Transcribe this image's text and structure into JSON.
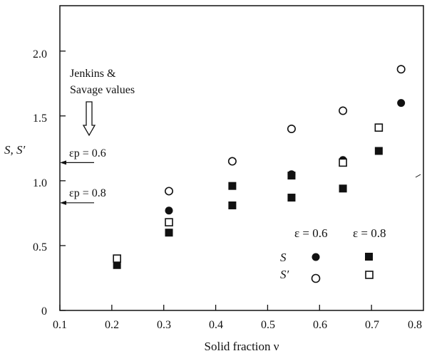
{
  "chart_data": {
    "type": "scatter",
    "xlabel": "Solid fraction ν",
    "ylabel": "S, S′",
    "xlim": [
      0.1,
      0.8
    ],
    "ylim": [
      0,
      2.35
    ],
    "x_ticks": [
      "0.1",
      "0.2",
      "0.3",
      "0.4",
      "0.5",
      "0.6",
      "0.7",
      "0.8"
    ],
    "y_ticks": [
      "0",
      "0.5",
      "1.0",
      "1.5",
      "2.0"
    ],
    "grid": false,
    "series": [
      {
        "id": "S_e06",
        "marker": "filled-circle",
        "points": [
          [
            0.31,
            0.77
          ],
          [
            0.546,
            1.05
          ],
          [
            0.645,
            1.16
          ],
          [
            0.757,
            1.6
          ]
        ]
      },
      {
        "id": "Sp_e06",
        "marker": "open-circle",
        "points": [
          [
            0.31,
            0.92
          ],
          [
            0.432,
            1.15
          ],
          [
            0.546,
            1.4
          ],
          [
            0.645,
            1.54
          ],
          [
            0.757,
            1.86
          ]
        ]
      },
      {
        "id": "S_e08",
        "marker": "filled-square",
        "points": [
          [
            0.21,
            0.35
          ],
          [
            0.31,
            0.6
          ],
          [
            0.432,
            0.96
          ],
          [
            0.432,
            0.81
          ],
          [
            0.546,
            0.87
          ],
          [
            0.546,
            1.04
          ],
          [
            0.645,
            0.94
          ],
          [
            0.714,
            1.23
          ]
        ]
      },
      {
        "id": "Sp_e08",
        "marker": "open-square",
        "points": [
          [
            0.21,
            0.4
          ],
          [
            0.31,
            0.68
          ],
          [
            0.645,
            1.14
          ],
          [
            0.714,
            1.41
          ]
        ]
      }
    ],
    "annotations": {
      "jenkins_line1": "Jenkins &",
      "jenkins_line2": "Savage values",
      "ep06_label": "εp = 0.6",
      "ep06_value": 1.14,
      "ep08_label": "εp = 0.8",
      "ep08_value": 0.83
    },
    "legend": {
      "position": "bottom-right",
      "col1_header": "ε = 0.6",
      "col2_header": "ε = 0.8",
      "row1_label": "S",
      "row2_label": "S′"
    }
  }
}
